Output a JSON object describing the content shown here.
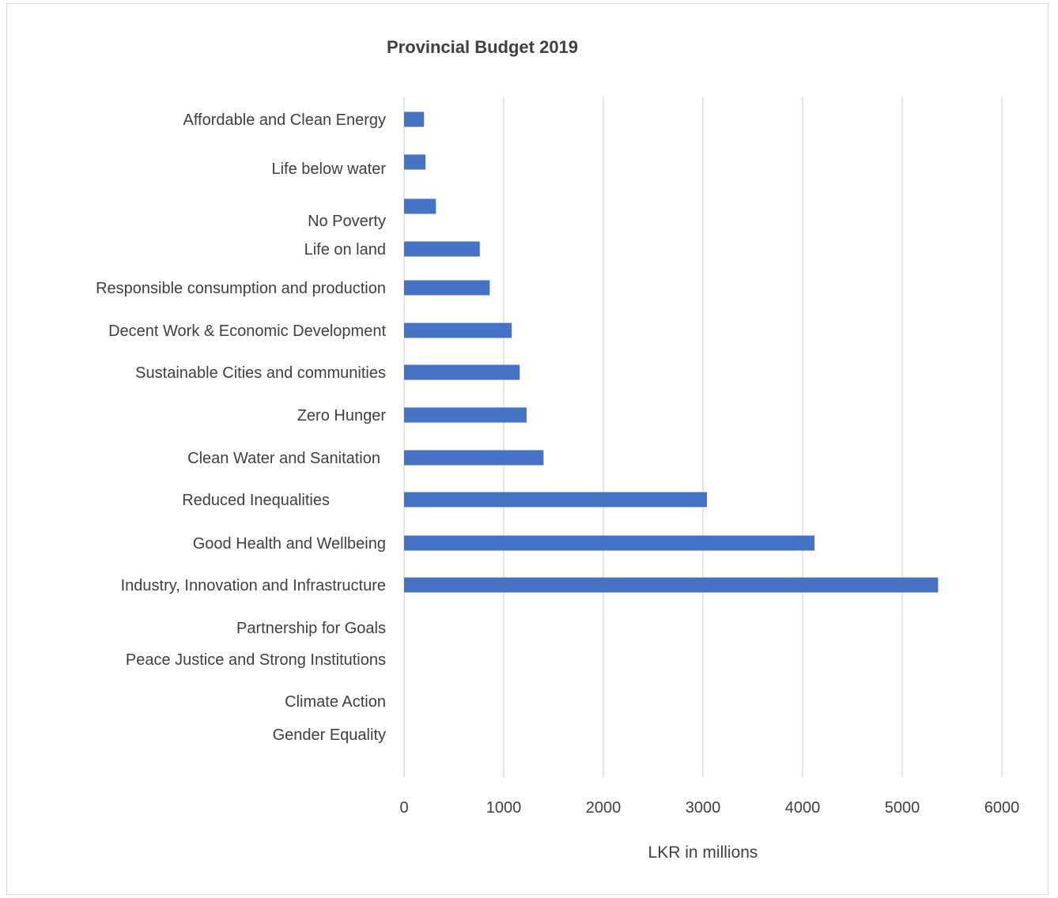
{
  "chart_data": {
    "type": "bar",
    "orientation": "horizontal",
    "title": "Provincial Budget 2019",
    "xlabel": "LKR in millions",
    "ylabel": "",
    "xlim": [
      0,
      6000
    ],
    "xticks": [
      "0",
      "1000",
      "2000",
      "3000",
      "4000",
      "5000",
      "6000"
    ],
    "grid": true,
    "legend": "none",
    "bar_color": "#4472c4",
    "categories": [
      "Affordable and Clean Energy",
      "Life below water",
      "No Poverty",
      "Life on land",
      "Responsible consumption and production",
      "Decent Work & Economic Development",
      "Sustainable Cities and communities",
      "Zero Hunger",
      "Clean Water and Sanitation",
      "Reduced Inequalities",
      "Good Health and Wellbeing",
      "Industry, Innovation and Infrastructure",
      "Partnership for Goals",
      "Peace Justice and Strong Institutions",
      "Climate Action",
      "Gender Equality"
    ],
    "values": [
      200,
      215,
      320,
      760,
      860,
      1080,
      1160,
      1230,
      1400,
      3040,
      4120,
      5360,
      0,
      0,
      0,
      0
    ]
  }
}
